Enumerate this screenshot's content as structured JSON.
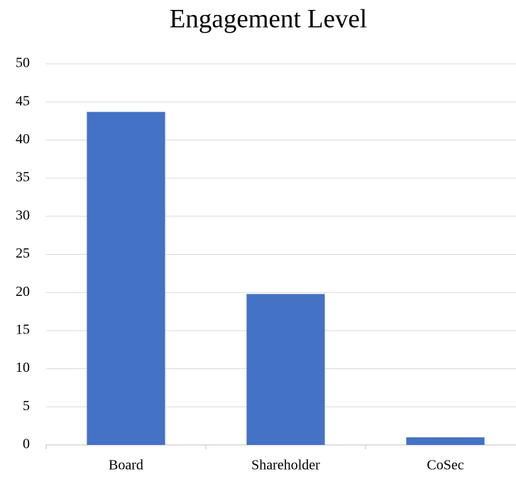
{
  "chart_data": {
    "type": "bar",
    "title": "Engagement Level",
    "categories": [
      "Board",
      "Shareholder",
      "CoSec"
    ],
    "values": [
      43.7,
      19.8,
      1
    ],
    "color": "#4472c4",
    "ylim": [
      0,
      50
    ],
    "yticks": [
      0,
      5,
      10,
      15,
      20,
      25,
      30,
      35,
      40,
      45,
      50
    ],
    "grid": true
  }
}
